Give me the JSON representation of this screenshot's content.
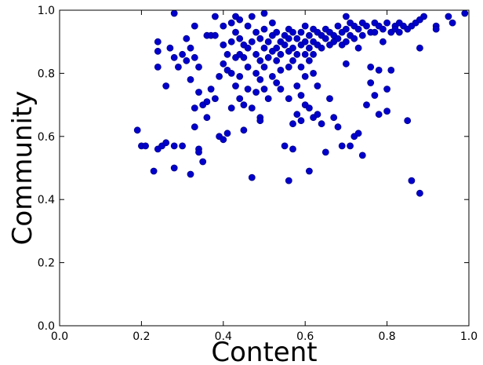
{
  "chart_data": {
    "type": "scatter",
    "title": "",
    "xlabel": "Content",
    "ylabel": "Community",
    "xlim": [
      0.0,
      1.0
    ],
    "ylim": [
      0.0,
      1.0
    ],
    "x_ticks": [
      "0.0",
      "0.2",
      "0.4",
      "0.6",
      "0.8",
      "1.0"
    ],
    "y_ticks": [
      "0.0",
      "0.2",
      "0.4",
      "0.6",
      "0.8",
      "1.0"
    ],
    "grid": false,
    "legend": "none",
    "marker_color": "#0000cc",
    "points": [
      [
        0.19,
        0.62
      ],
      [
        0.2,
        0.57
      ],
      [
        0.21,
        0.57
      ],
      [
        0.23,
        0.49
      ],
      [
        0.24,
        0.56
      ],
      [
        0.25,
        0.57
      ],
      [
        0.26,
        0.58
      ],
      [
        0.28,
        0.57
      ],
      [
        0.28,
        0.5
      ],
      [
        0.3,
        0.57
      ],
      [
        0.32,
        0.48
      ],
      [
        0.33,
        0.63
      ],
      [
        0.34,
        0.56
      ],
      [
        0.34,
        0.55
      ],
      [
        0.35,
        0.52
      ],
      [
        0.36,
        0.66
      ],
      [
        0.24,
        0.9
      ],
      [
        0.24,
        0.87
      ],
      [
        0.24,
        0.82
      ],
      [
        0.26,
        0.76
      ],
      [
        0.27,
        0.88
      ],
      [
        0.28,
        0.99
      ],
      [
        0.28,
        0.85
      ],
      [
        0.29,
        0.82
      ],
      [
        0.3,
        0.86
      ],
      [
        0.31,
        0.91
      ],
      [
        0.31,
        0.84
      ],
      [
        0.32,
        0.88
      ],
      [
        0.32,
        0.78
      ],
      [
        0.33,
        0.95
      ],
      [
        0.33,
        0.85
      ],
      [
        0.33,
        0.69
      ],
      [
        0.34,
        0.82
      ],
      [
        0.34,
        0.74
      ],
      [
        0.35,
        0.7
      ],
      [
        0.36,
        0.92
      ],
      [
        0.36,
        0.71
      ],
      [
        0.37,
        0.75
      ],
      [
        0.37,
        0.92
      ],
      [
        0.38,
        0.92
      ],
      [
        0.38,
        0.98
      ],
      [
        0.38,
        0.72
      ],
      [
        0.39,
        0.6
      ],
      [
        0.39,
        0.79
      ],
      [
        0.4,
        0.95
      ],
      [
        0.4,
        0.89
      ],
      [
        0.4,
        0.83
      ],
      [
        0.4,
        0.59
      ],
      [
        0.41,
        0.86
      ],
      [
        0.41,
        0.81
      ],
      [
        0.41,
        0.61
      ],
      [
        0.42,
        0.96
      ],
      [
        0.42,
        0.9
      ],
      [
        0.42,
        0.8
      ],
      [
        0.42,
        0.69
      ],
      [
        0.43,
        0.98
      ],
      [
        0.43,
        0.93
      ],
      [
        0.43,
        0.85
      ],
      [
        0.43,
        0.76
      ],
      [
        0.44,
        0.97
      ],
      [
        0.44,
        0.91
      ],
      [
        0.44,
        0.86
      ],
      [
        0.44,
        0.79
      ],
      [
        0.44,
        0.72
      ],
      [
        0.45,
        0.89
      ],
      [
        0.45,
        0.85
      ],
      [
        0.45,
        0.7
      ],
      [
        0.45,
        0.62
      ],
      [
        0.46,
        0.95
      ],
      [
        0.46,
        0.88
      ],
      [
        0.46,
        0.82
      ],
      [
        0.46,
        0.75
      ],
      [
        0.47,
        0.98
      ],
      [
        0.47,
        0.9
      ],
      [
        0.47,
        0.47
      ],
      [
        0.47,
        0.69
      ],
      [
        0.48,
        0.93
      ],
      [
        0.48,
        0.86
      ],
      [
        0.48,
        0.8
      ],
      [
        0.48,
        0.74
      ],
      [
        0.49,
        0.91
      ],
      [
        0.49,
        0.84
      ],
      [
        0.49,
        0.78
      ],
      [
        0.49,
        0.66
      ],
      [
        0.49,
        0.65
      ],
      [
        0.5,
        0.99
      ],
      [
        0.5,
        0.94
      ],
      [
        0.5,
        0.88
      ],
      [
        0.5,
        0.82
      ],
      [
        0.5,
        0.75
      ],
      [
        0.51,
        0.9
      ],
      [
        0.51,
        0.85
      ],
      [
        0.51,
        0.72
      ],
      [
        0.52,
        0.96
      ],
      [
        0.52,
        0.92
      ],
      [
        0.52,
        0.87
      ],
      [
        0.52,
        0.79
      ],
      [
        0.53,
        0.93
      ],
      [
        0.53,
        0.88
      ],
      [
        0.53,
        0.84
      ],
      [
        0.53,
        0.77
      ],
      [
        0.54,
        0.9
      ],
      [
        0.54,
        0.86
      ],
      [
        0.54,
        0.81
      ],
      [
        0.54,
        0.75
      ],
      [
        0.55,
        0.92
      ],
      [
        0.55,
        0.89
      ],
      [
        0.55,
        0.57
      ],
      [
        0.56,
        0.94
      ],
      [
        0.56,
        0.91
      ],
      [
        0.56,
        0.87
      ],
      [
        0.56,
        0.82
      ],
      [
        0.56,
        0.72
      ],
      [
        0.56,
        0.46
      ],
      [
        0.57,
        0.93
      ],
      [
        0.57,
        0.88
      ],
      [
        0.57,
        0.84
      ],
      [
        0.57,
        0.64
      ],
      [
        0.57,
        0.56
      ],
      [
        0.58,
        0.91
      ],
      [
        0.58,
        0.86
      ],
      [
        0.58,
        0.76
      ],
      [
        0.58,
        0.67
      ],
      [
        0.59,
        0.93
      ],
      [
        0.59,
        0.89
      ],
      [
        0.59,
        0.82
      ],
      [
        0.59,
        0.73
      ],
      [
        0.59,
        0.65
      ],
      [
        0.6,
        0.95
      ],
      [
        0.6,
        0.9
      ],
      [
        0.6,
        0.86
      ],
      [
        0.6,
        0.79
      ],
      [
        0.6,
        0.7
      ],
      [
        0.61,
        0.92
      ],
      [
        0.61,
        0.88
      ],
      [
        0.61,
        0.84
      ],
      [
        0.61,
        0.69
      ],
      [
        0.61,
        0.49
      ],
      [
        0.62,
        0.94
      ],
      [
        0.62,
        0.9
      ],
      [
        0.62,
        0.86
      ],
      [
        0.62,
        0.8
      ],
      [
        0.62,
        0.66
      ],
      [
        0.63,
        0.93
      ],
      [
        0.63,
        0.89
      ],
      [
        0.63,
        0.76
      ],
      [
        0.63,
        0.67
      ],
      [
        0.64,
        0.92
      ],
      [
        0.64,
        0.88
      ],
      [
        0.64,
        0.64
      ],
      [
        0.65,
        0.94
      ],
      [
        0.65,
        0.91
      ],
      [
        0.65,
        0.55
      ],
      [
        0.66,
        0.93
      ],
      [
        0.66,
        0.89
      ],
      [
        0.66,
        0.72
      ],
      [
        0.67,
        0.92
      ],
      [
        0.67,
        0.9
      ],
      [
        0.67,
        0.66
      ],
      [
        0.68,
        0.95
      ],
      [
        0.68,
        0.91
      ],
      [
        0.68,
        0.63
      ],
      [
        0.69,
        0.93
      ],
      [
        0.69,
        0.89
      ],
      [
        0.69,
        0.57
      ],
      [
        0.7,
        0.98
      ],
      [
        0.7,
        0.94
      ],
      [
        0.7,
        0.9
      ],
      [
        0.7,
        0.83
      ],
      [
        0.71,
        0.96
      ],
      [
        0.71,
        0.92
      ],
      [
        0.71,
        0.57
      ],
      [
        0.72,
        0.95
      ],
      [
        0.72,
        0.91
      ],
      [
        0.72,
        0.6
      ],
      [
        0.73,
        0.94
      ],
      [
        0.73,
        0.88
      ],
      [
        0.73,
        0.61
      ],
      [
        0.74,
        0.96
      ],
      [
        0.74,
        0.92
      ],
      [
        0.74,
        0.54
      ],
      [
        0.75,
        0.95
      ],
      [
        0.75,
        0.7
      ],
      [
        0.76,
        0.93
      ],
      [
        0.76,
        0.82
      ],
      [
        0.76,
        0.77
      ],
      [
        0.77,
        0.96
      ],
      [
        0.77,
        0.93
      ],
      [
        0.77,
        0.73
      ],
      [
        0.78,
        0.95
      ],
      [
        0.78,
        0.81
      ],
      [
        0.78,
        0.67
      ],
      [
        0.79,
        0.94
      ],
      [
        0.79,
        0.9
      ],
      [
        0.8,
        0.96
      ],
      [
        0.8,
        0.68
      ],
      [
        0.8,
        0.75
      ],
      [
        0.81,
        0.93
      ],
      [
        0.81,
        0.81
      ],
      [
        0.82,
        0.95
      ],
      [
        0.82,
        0.94
      ],
      [
        0.83,
        0.96
      ],
      [
        0.83,
        0.93
      ],
      [
        0.84,
        0.95
      ],
      [
        0.85,
        0.94
      ],
      [
        0.85,
        0.65
      ],
      [
        0.86,
        0.95
      ],
      [
        0.86,
        0.46
      ],
      [
        0.87,
        0.96
      ],
      [
        0.88,
        0.97
      ],
      [
        0.88,
        0.42
      ],
      [
        0.88,
        0.88
      ],
      [
        0.89,
        0.98
      ],
      [
        0.92,
        0.95
      ],
      [
        0.92,
        0.94
      ],
      [
        0.95,
        0.98
      ],
      [
        0.96,
        0.96
      ],
      [
        0.99,
        0.99
      ]
    ]
  }
}
